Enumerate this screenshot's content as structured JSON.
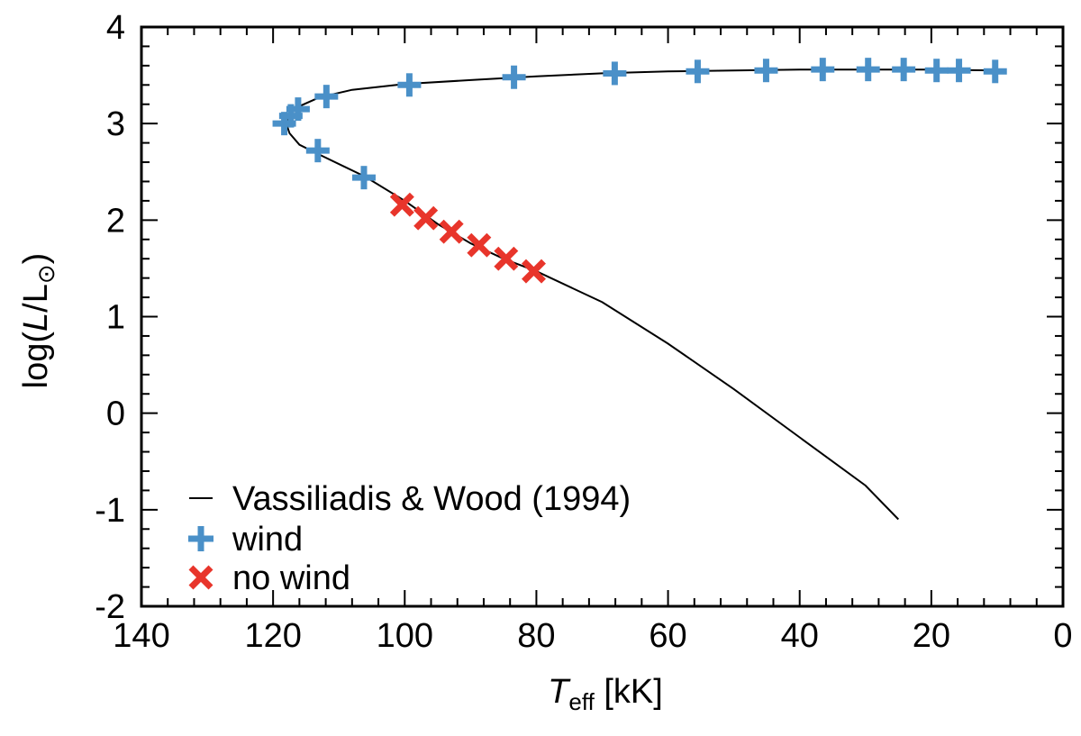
{
  "chart_data": {
    "type": "scatter",
    "title": "",
    "xlabel": {
      "main": "T",
      "sub": "eff",
      "unit": " [kK]"
    },
    "ylabel": {
      "prefix": "log(",
      "var": "L",
      "mid": "/L",
      "sub": "⊙",
      "suffix": ")"
    },
    "xlim": [
      140,
      0
    ],
    "ylim": [
      -2,
      4
    ],
    "xticks": [
      140,
      120,
      100,
      80,
      60,
      40,
      20,
      0
    ],
    "yticks": [
      -2,
      -1,
      0,
      1,
      2,
      3,
      4
    ],
    "legend_position": "bottom-left",
    "colors": {
      "track": "#000000",
      "wind": "#4a90c8",
      "no_wind": "#e8352b"
    },
    "series": [
      {
        "name": "Vassiliadis & Wood (1994)",
        "kind": "line",
        "x": [
          10,
          20,
          30,
          40,
          50,
          60,
          70,
          80,
          90,
          100,
          108,
          113,
          116,
          117.5,
          118,
          117.5,
          116,
          113,
          106,
          100,
          95,
          90,
          85,
          80,
          70,
          60,
          50,
          40,
          30,
          25
        ],
        "y": [
          3.55,
          3.56,
          3.56,
          3.56,
          3.55,
          3.54,
          3.52,
          3.49,
          3.45,
          3.41,
          3.35,
          3.27,
          3.18,
          3.09,
          3.0,
          2.9,
          2.78,
          2.68,
          2.45,
          2.2,
          1.96,
          1.76,
          1.6,
          1.47,
          1.15,
          0.72,
          0.25,
          -0.25,
          -0.75,
          -1.1
        ]
      },
      {
        "name": "wind",
        "kind": "plus",
        "x": [
          118.3,
          117.3,
          116.2,
          111.9,
          99.3,
          83.4,
          68.1,
          55.5,
          45.1,
          36.5,
          29.6,
          24.2,
          19.2,
          15.8,
          10.3
        ],
        "y": [
          3.0,
          3.08,
          3.15,
          3.28,
          3.4,
          3.48,
          3.52,
          3.54,
          3.55,
          3.56,
          3.56,
          3.56,
          3.55,
          3.55,
          3.54
        ]
      },
      {
        "name": "no wind",
        "kind": "cross",
        "x": [
          100.4,
          96.8,
          92.9,
          88.7,
          84.6,
          80.4
        ],
        "y": [
          2.16,
          2.02,
          1.88,
          1.74,
          1.6,
          1.47
        ]
      }
    ],
    "lower_wind_points": {
      "x": [
        113.2,
        106.2
      ],
      "y": [
        2.72,
        2.44
      ]
    }
  }
}
